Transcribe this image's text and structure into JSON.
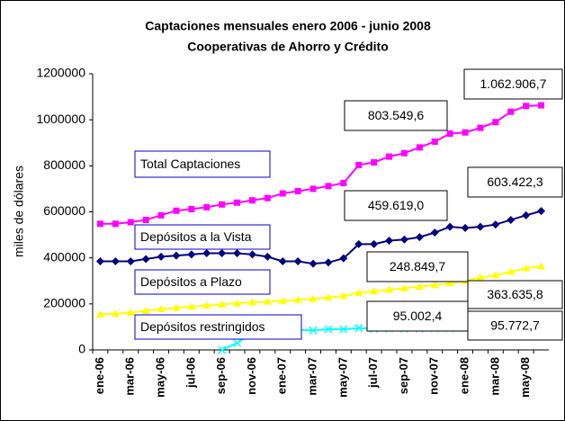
{
  "chart_data": {
    "type": "line",
    "title": "Captaciones mensuales enero 2006 - junio 2008",
    "subtitle": "Cooperativas de Ahorro y Crédito",
    "ylabel": "miles de dólares",
    "categories": [
      "ene-06",
      null,
      "mar-06",
      null,
      "may-06",
      null,
      "jul-06",
      null,
      "sep-06",
      null,
      "nov-06",
      null,
      "ene-07",
      null,
      "mar-07",
      null,
      "may-07",
      null,
      "jul-07",
      null,
      "sep-07",
      null,
      "nov-07",
      null,
      "ene-08",
      null,
      "mar-08",
      null,
      "may-08",
      null
    ],
    "ylim": [
      0,
      1200000
    ],
    "yticks": [
      0,
      200000,
      400000,
      600000,
      800000,
      1000000,
      1200000
    ],
    "grid": false,
    "series": [
      {
        "name": "Total Captaciones",
        "color": "#ff00ff",
        "marker": "square",
        "values": [
          548000,
          548000,
          555000,
          565000,
          585000,
          605000,
          612000,
          620000,
          632000,
          640000,
          650000,
          660000,
          680000,
          690000,
          700000,
          712000,
          725000,
          803549.6,
          815000,
          840000,
          855000,
          880000,
          905000,
          940000,
          945000,
          965000,
          990000,
          1035000,
          1060000,
          1062906.7
        ],
        "value_labels": [
          null,
          null,
          null,
          null,
          null,
          null,
          null,
          null,
          null,
          null,
          null,
          null,
          null,
          null,
          null,
          null,
          null,
          "803.549,6",
          null,
          null,
          null,
          null,
          null,
          null,
          null,
          null,
          null,
          null,
          null,
          "1.062.906,7"
        ]
      },
      {
        "name": "Depósitos a la Vista",
        "color": "#000080",
        "marker": "diamond",
        "values": [
          385000,
          385000,
          385000,
          395000,
          405000,
          410000,
          415000,
          420000,
          420000,
          420000,
          415000,
          405000,
          385000,
          385000,
          375000,
          380000,
          398000,
          459619.0,
          460000,
          475000,
          480000,
          490000,
          510000,
          535000,
          530000,
          535000,
          545000,
          565000,
          585000,
          603422.3
        ],
        "value_labels": [
          null,
          null,
          null,
          null,
          null,
          null,
          null,
          null,
          null,
          null,
          null,
          null,
          null,
          null,
          null,
          null,
          null,
          "459.619,0",
          null,
          null,
          null,
          null,
          null,
          null,
          null,
          null,
          null,
          null,
          null,
          "603.422,3"
        ]
      },
      {
        "name": "Depósitos a Plazo",
        "color": "#ffff00",
        "marker": "triangle",
        "values": [
          155000,
          158000,
          162000,
          170000,
          178000,
          183000,
          188000,
          193000,
          198000,
          203000,
          207000,
          210000,
          213000,
          218000,
          222000,
          228000,
          235000,
          248849.7,
          255000,
          262000,
          268000,
          275000,
          282000,
          290000,
          300000,
          315000,
          325000,
          340000,
          355000,
          363635.8
        ],
        "value_labels": [
          null,
          null,
          null,
          null,
          null,
          null,
          null,
          null,
          null,
          null,
          null,
          null,
          null,
          null,
          null,
          null,
          null,
          "248.849,7",
          null,
          null,
          null,
          null,
          null,
          null,
          null,
          null,
          null,
          null,
          null,
          "363.635,8"
        ]
      },
      {
        "name": "Depósitos restringidos",
        "color": "#00ffff",
        "marker": "x",
        "values": [
          null,
          null,
          null,
          null,
          null,
          null,
          null,
          null,
          0,
          30000,
          75000,
          85000,
          88000,
          88000,
          85000,
          90000,
          90000,
          95002.4,
          92000,
          93000,
          93000,
          93000,
          94000,
          94000,
          95000,
          96000,
          96000,
          95000,
          96000,
          95772.7
        ],
        "value_labels": [
          null,
          null,
          null,
          null,
          null,
          null,
          null,
          null,
          null,
          null,
          null,
          null,
          null,
          null,
          null,
          null,
          null,
          "95.002,4",
          null,
          null,
          null,
          null,
          null,
          null,
          null,
          null,
          null,
          null,
          null,
          "95.772,7"
        ]
      }
    ]
  }
}
